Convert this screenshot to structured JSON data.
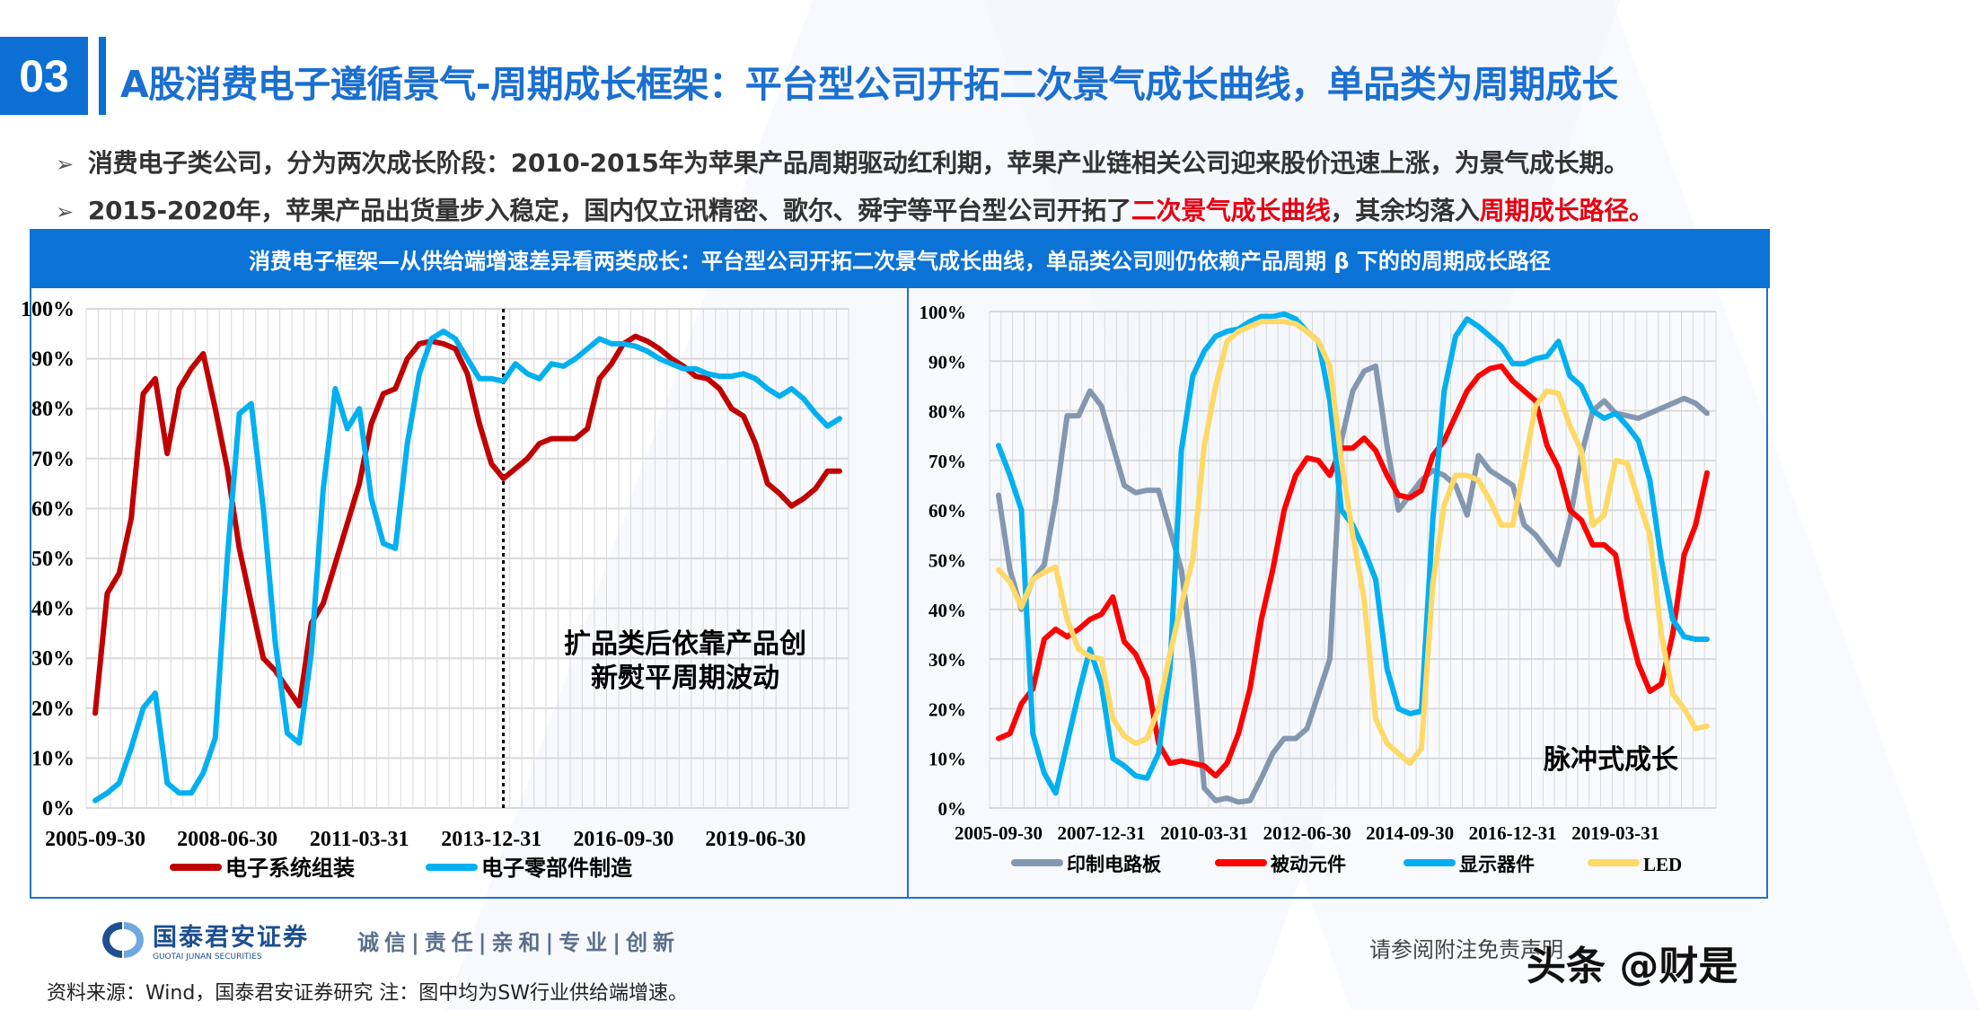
{
  "section_number": "03",
  "title": "A股消费电子遵循景气-周期成长框架：平台型公司开拓二次景气成长曲线，单品类为周期成长",
  "bullets": [
    {
      "segments": [
        {
          "text": "消费电子类公司，分为两次成长阶段：2010-2015年为苹果产品周期驱动红利期，苹果产业链相关公司迎来股价迅速上涨，为景气成长期。",
          "highlight": false
        }
      ]
    },
    {
      "segments": [
        {
          "text": "2015-2020年，苹果产品出货量步入稳定，国内仅立讯精密、歌尔、舜宇等平台型公司开拓了",
          "highlight": false
        },
        {
          "text": "二次景气成长曲线",
          "highlight": true
        },
        {
          "text": "，其余均落入",
          "highlight": false
        },
        {
          "text": "周期成长路径。",
          "highlight": true
        }
      ]
    }
  ],
  "banner": "消费电子框架—从供给端增速差异看两类成长：平台型公司开拓二次景气成长曲线，单品类公司则仍依赖产品周期 β 下的的周期成长路径",
  "colors": {
    "brand_blue": "#0b6fd3",
    "highlight_red": "#e60012"
  },
  "chart_data": [
    {
      "type": "line",
      "x": [
        "2005-09-30",
        "2005-12-31",
        "2006-03-31",
        "2006-06-30",
        "2006-09-30",
        "2006-12-31",
        "2007-03-31",
        "2007-06-30",
        "2007-09-30",
        "2007-12-31",
        "2008-03-31",
        "2008-06-30",
        "2008-09-30",
        "2008-12-31",
        "2009-03-31",
        "2009-06-30",
        "2009-09-30",
        "2009-12-31",
        "2010-03-31",
        "2010-06-30",
        "2010-09-30",
        "2010-12-31",
        "2011-03-31",
        "2011-06-30",
        "2011-09-30",
        "2011-12-31",
        "2012-03-31",
        "2012-06-30",
        "2012-09-30",
        "2012-12-31",
        "2013-03-31",
        "2013-06-30",
        "2013-09-30",
        "2013-12-31",
        "2014-03-31",
        "2014-06-30",
        "2014-09-30",
        "2014-12-31",
        "2015-03-31",
        "2015-06-30",
        "2015-09-30",
        "2015-12-31",
        "2016-03-31",
        "2016-06-30",
        "2016-09-30",
        "2016-12-31",
        "2017-03-31",
        "2017-06-30",
        "2017-09-30",
        "2017-12-31",
        "2018-03-31",
        "2018-06-30",
        "2018-09-30",
        "2018-12-31",
        "2019-03-31",
        "2019-06-30",
        "2019-09-30",
        "2019-12-31",
        "2020-03-31",
        "2020-06-30",
        "2020-09-30",
        "2020-12-31",
        "2021-03-31"
      ],
      "x_tick_labels": [
        "2005-09-30",
        "2008-06-30",
        "2011-03-31",
        "2013-12-31",
        "2016-09-30",
        "2019-06-30"
      ],
      "y_tick_labels": [
        "0%",
        "10%",
        "20%",
        "30%",
        "40%",
        "50%",
        "60%",
        "70%",
        "80%",
        "90%",
        "100%"
      ],
      "ylim": [
        0,
        100
      ],
      "y_unit": "%",
      "grid": true,
      "legend_position": "bottom",
      "vertical_marker": "2014-03-31",
      "annotation": [
        "扩品类后依靠产品创",
        "新熨平周期波动"
      ],
      "series": [
        {
          "name": "电子系统组装",
          "color": "#c00000",
          "values": [
            19,
            43,
            47,
            58,
            83,
            86,
            71,
            84,
            88,
            91,
            80,
            68,
            52,
            41,
            30,
            27.5,
            24,
            20.5,
            37,
            41,
            49,
            57,
            65,
            77,
            83,
            84,
            90,
            93,
            93.5,
            93,
            92,
            87,
            77,
            69,
            66,
            68,
            70,
            73,
            74,
            74,
            74,
            76,
            86,
            89,
            93,
            94.5,
            93.5,
            92,
            90,
            88.5,
            86.5,
            86,
            84,
            80,
            78.5,
            73,
            65,
            63,
            60.5,
            62,
            64,
            67.5,
            67.5
          ]
        },
        {
          "name": "电子零部件制造",
          "color": "#00b0f0",
          "values": [
            1.5,
            3,
            5,
            12,
            20,
            23,
            5,
            3,
            3,
            7,
            14,
            50,
            79,
            81,
            60,
            33,
            15,
            13,
            31,
            64,
            84,
            76,
            80,
            62,
            53,
            52,
            73,
            87,
            94,
            95.5,
            94,
            90,
            86,
            86,
            85.5,
            89,
            87,
            86,
            89,
            88.5,
            90,
            92,
            94,
            93,
            93,
            92.5,
            91.5,
            90,
            89,
            88,
            88,
            87,
            86.5,
            86.5,
            87,
            86,
            84,
            82.5,
            84,
            82,
            79,
            76.5,
            78
          ]
        }
      ]
    },
    {
      "type": "line",
      "x": [
        "2005-09-30",
        "2005-12-31",
        "2006-03-31",
        "2006-06-30",
        "2006-09-30",
        "2006-12-31",
        "2007-03-31",
        "2007-06-30",
        "2007-09-30",
        "2007-12-31",
        "2008-03-31",
        "2008-06-30",
        "2008-09-30",
        "2008-12-31",
        "2009-03-31",
        "2009-06-30",
        "2009-09-30",
        "2009-12-31",
        "2010-03-31",
        "2010-06-30",
        "2010-09-30",
        "2010-12-31",
        "2011-03-31",
        "2011-06-30",
        "2011-09-30",
        "2011-12-31",
        "2012-03-31",
        "2012-06-30",
        "2012-09-30",
        "2012-12-31",
        "2013-03-31",
        "2013-06-30",
        "2013-09-30",
        "2013-12-31",
        "2014-03-31",
        "2014-06-30",
        "2014-09-30",
        "2014-12-31",
        "2015-03-31",
        "2015-06-30",
        "2015-09-30",
        "2015-12-31",
        "2016-03-31",
        "2016-06-30",
        "2016-09-30",
        "2016-12-31",
        "2017-03-31",
        "2017-06-30",
        "2017-09-30",
        "2017-12-31",
        "2018-03-31",
        "2018-06-30",
        "2018-09-30",
        "2018-12-31",
        "2019-03-31",
        "2019-06-30",
        "2019-09-30",
        "2019-12-31",
        "2020-03-31",
        "2020-06-30",
        "2020-09-30",
        "2020-12-31",
        "2021-03-31"
      ],
      "x_tick_labels": [
        "2005-09-30",
        "2007-12-31",
        "2010-03-31",
        "2012-06-30",
        "2014-09-30",
        "2016-12-31",
        "2019-03-31"
      ],
      "y_tick_labels": [
        "0%",
        "10%",
        "20%",
        "30%",
        "40%",
        "50%",
        "60%",
        "70%",
        "80%",
        "90%",
        "100%"
      ],
      "ylim": [
        0,
        100
      ],
      "y_unit": "%",
      "grid": true,
      "legend_position": "bottom",
      "annotation": [
        "脉冲式成长"
      ],
      "series": [
        {
          "name": "印制电路板",
          "color": "#8497b0",
          "values": [
            63,
            48,
            40,
            46,
            49,
            62,
            79,
            79,
            84,
            81,
            73,
            65,
            63.5,
            64,
            64,
            56,
            48,
            30,
            4,
            1.5,
            2,
            1.2,
            1.5,
            6,
            11,
            14,
            14,
            16,
            23,
            30,
            74,
            84,
            88,
            89,
            73,
            60,
            63,
            66,
            68,
            67,
            65,
            59,
            71,
            68,
            66.5,
            65,
            57,
            55,
            52,
            49,
            58,
            71,
            80,
            82,
            79.5,
            79,
            78.5,
            79.5,
            80.5,
            81.5,
            82.5,
            81.5,
            79.5
          ]
        },
        {
          "name": "被动元件",
          "color": "#ff0000",
          "values": [
            14,
            15,
            21,
            24,
            34,
            36,
            34.5,
            36,
            38,
            39,
            42.5,
            33.5,
            31,
            26,
            13,
            9,
            9.5,
            9,
            8.5,
            6.5,
            9,
            15,
            24,
            38,
            48,
            60,
            67,
            70.5,
            70,
            67,
            72.5,
            72.5,
            74.5,
            72,
            67,
            63,
            62.5,
            64,
            71,
            74,
            79,
            84,
            87,
            88.5,
            89,
            86,
            84,
            82,
            73,
            68.5,
            60,
            58,
            53,
            53,
            51,
            38,
            29,
            23.5,
            25,
            35,
            51,
            57,
            67.5
          ]
        },
        {
          "name": "显示器件",
          "color": "#00b0f0",
          "values": [
            73,
            67,
            60,
            15,
            7,
            3,
            13,
            23,
            32,
            25,
            10,
            8.5,
            6.5,
            6,
            11,
            28,
            72,
            87,
            92,
            95,
            96,
            96.5,
            98,
            99,
            99,
            99.5,
            98.5,
            96,
            94,
            82,
            60,
            57,
            52,
            46,
            28,
            20,
            19,
            19.5,
            58,
            84,
            95,
            98.5,
            97,
            95,
            93,
            89.5,
            89.5,
            90.5,
            91,
            94,
            87,
            85,
            80,
            78.5,
            79.5,
            77,
            74,
            66,
            50,
            38,
            34.5,
            34,
            34
          ]
        },
        {
          "name": "LED",
          "color": "#ffd966",
          "values": [
            48,
            45.5,
            40.5,
            46,
            47.5,
            48.5,
            38,
            32,
            30.5,
            30,
            18,
            14.5,
            13,
            14,
            20,
            31,
            41,
            50,
            73,
            85,
            94,
            96,
            97,
            98,
            98,
            98,
            97.5,
            96,
            94,
            89,
            70,
            55,
            42,
            18,
            13,
            11,
            9,
            12,
            45,
            61,
            67,
            67,
            66,
            62,
            57,
            57,
            69,
            81,
            84,
            83.5,
            77,
            72,
            57,
            59,
            70,
            69.5,
            62,
            55,
            35,
            23,
            20,
            16,
            16.5
          ]
        }
      ]
    }
  ],
  "footer": {
    "logo_name": "国泰君安证券",
    "logo_sub": "GUOTAI JUNAN SECURITIES",
    "slogan": "诚信|责任|亲和|专业|创新",
    "source": "资料来源：Wind，国泰君安证券研究  注：图中均为SW行业供给端增速。",
    "disclaimer": "请参阅附注免责声明",
    "watermark": "头条 @财是"
  }
}
